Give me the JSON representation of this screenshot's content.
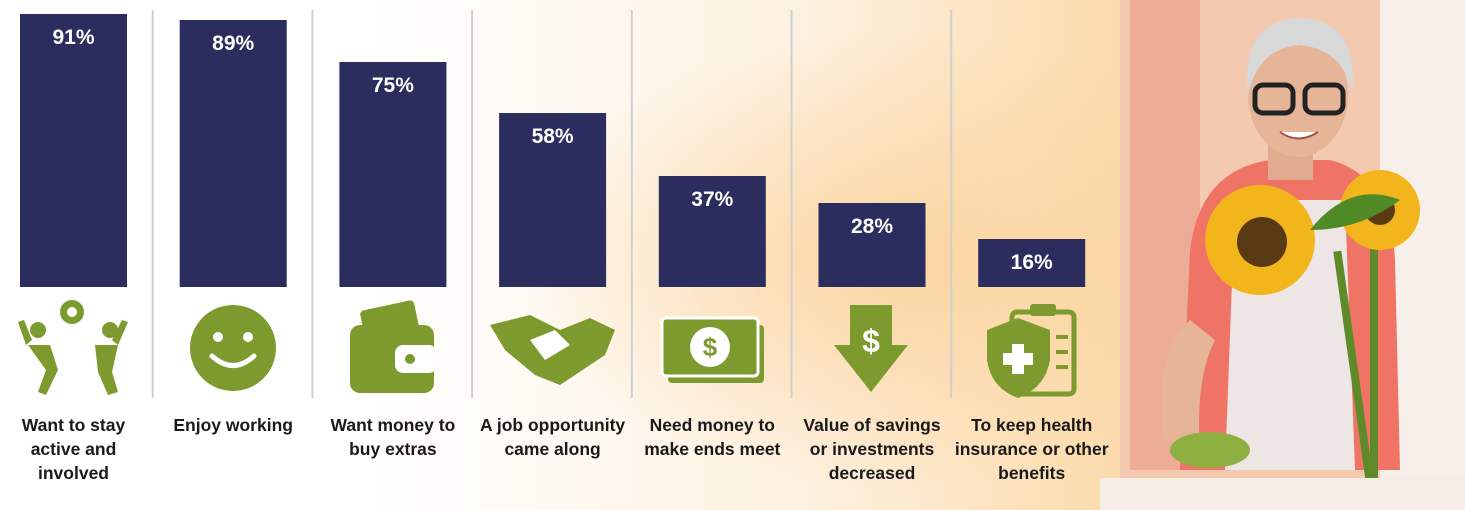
{
  "chart_data": {
    "type": "bar",
    "categories": [
      "Want to stay active and involved",
      "Enjoy working",
      "Want money to buy extras",
      "A job opportunity came along",
      "Need money to make ends meet",
      "Value of savings or investments decreased",
      "To keep health insurance or other benefits"
    ],
    "values": [
      91,
      89,
      75,
      58,
      37,
      28,
      16
    ],
    "value_labels": [
      "91%",
      "89%",
      "75%",
      "58%",
      "37%",
      "28%",
      "16%"
    ],
    "color": "#2b2d5f",
    "ylim": [
      0,
      95
    ]
  }
}
